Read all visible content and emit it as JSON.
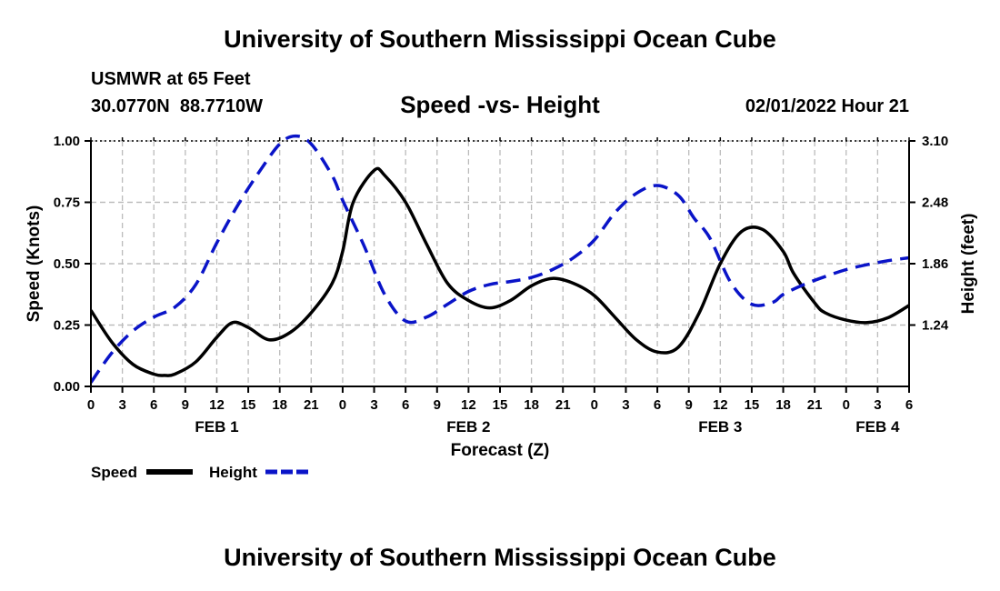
{
  "header": {
    "title": "University of Southern Mississippi Ocean Cube",
    "station": "USMWR at 65 Feet",
    "lat": "30.0770N",
    "lon": "88.7710W",
    "subtitle": "Speed -vs- Height",
    "issued": "02/01/2022 Hour 21"
  },
  "footer": {
    "title": "University of Southern Mississippi Ocean Cube"
  },
  "chart_data": {
    "type": "line",
    "title": "Speed -vs- Height",
    "xlabel": "Forecast (Z)",
    "ylabel": "Speed (Knots)",
    "y2label": "Height (feet)",
    "xlim": [
      0,
      78
    ],
    "ylim": [
      0,
      1
    ],
    "y2lim": [
      0.62,
      3.1
    ],
    "grid": true,
    "x_ticks": [
      0,
      3,
      6,
      9,
      12,
      15,
      18,
      21,
      24,
      27,
      30,
      33,
      36,
      39,
      42,
      45,
      48,
      51,
      54,
      57,
      60,
      63,
      66,
      69,
      72,
      75,
      78
    ],
    "x_tick_labels": [
      "0",
      "3",
      "6",
      "9",
      "12",
      "15",
      "18",
      "21",
      "0",
      "3",
      "6",
      "9",
      "12",
      "15",
      "18",
      "21",
      "0",
      "3",
      "6",
      "9",
      "12",
      "15",
      "18",
      "21",
      "0",
      "3",
      "6"
    ],
    "day_labels": [
      {
        "label": "FEB 1",
        "x": 12
      },
      {
        "label": "FEB 2",
        "x": 36
      },
      {
        "label": "FEB 3",
        "x": 60
      },
      {
        "label": "FEB 4",
        "x": 75
      }
    ],
    "y_ticks": [
      0,
      0.25,
      0.5,
      0.75,
      1.0
    ],
    "y_tick_labels": [
      "0.00",
      "0.25",
      "0.50",
      "0.75",
      "1.00"
    ],
    "y2_ticks": [
      1.24,
      1.86,
      2.48,
      3.1
    ],
    "y2_tick_labels": [
      "1.24",
      "1.86",
      "2.48",
      "3.10"
    ],
    "series": [
      {
        "name": "Speed",
        "axis": "left",
        "color": "#000000",
        "dash": "solid",
        "x": [
          0,
          2,
          4,
          6,
          7,
          8,
          10,
          12,
          13.5,
          15,
          17,
          19,
          21,
          23,
          24,
          25,
          27,
          28,
          30,
          32,
          34,
          36,
          38,
          40,
          42,
          44,
          46,
          48,
          50,
          52,
          54,
          56,
          58,
          60,
          62,
          64,
          66,
          67,
          69,
          70,
          72,
          74,
          76,
          78
        ],
        "values": [
          0.31,
          0.18,
          0.09,
          0.05,
          0.045,
          0.05,
          0.1,
          0.2,
          0.26,
          0.24,
          0.19,
          0.22,
          0.3,
          0.42,
          0.55,
          0.75,
          0.88,
          0.86,
          0.75,
          0.58,
          0.42,
          0.35,
          0.32,
          0.35,
          0.41,
          0.44,
          0.42,
          0.37,
          0.28,
          0.19,
          0.14,
          0.16,
          0.3,
          0.5,
          0.63,
          0.64,
          0.55,
          0.46,
          0.34,
          0.3,
          0.27,
          0.26,
          0.28,
          0.33
        ]
      },
      {
        "name": "Height",
        "axis": "right",
        "color": "#0a14c8",
        "dash": "dashed",
        "x": [
          0,
          2,
          4,
          6,
          8,
          10,
          12,
          14,
          16,
          18,
          19.5,
          21,
          23,
          24,
          26,
          28,
          30,
          32,
          34,
          36,
          38,
          40,
          42,
          44,
          46,
          48,
          50,
          52,
          54,
          56,
          57.5,
          59,
          61,
          63,
          65,
          66,
          68,
          70,
          72,
          74,
          76,
          78
        ],
        "values": [
          0.66,
          0.96,
          1.18,
          1.32,
          1.42,
          1.65,
          2.07,
          2.45,
          2.78,
          3.07,
          3.15,
          3.07,
          2.75,
          2.5,
          2.05,
          1.55,
          1.28,
          1.32,
          1.45,
          1.58,
          1.65,
          1.68,
          1.72,
          1.8,
          1.92,
          2.1,
          2.38,
          2.57,
          2.65,
          2.55,
          2.32,
          2.12,
          1.67,
          1.45,
          1.47,
          1.55,
          1.65,
          1.73,
          1.8,
          1.85,
          1.89,
          1.92
        ]
      }
    ],
    "legend": {
      "placement": "bottom-left",
      "items": [
        {
          "label": "Speed",
          "color": "#000000",
          "dash": "solid"
        },
        {
          "label": "Height",
          "color": "#0a14c8",
          "dash": "dashed"
        }
      ]
    }
  }
}
